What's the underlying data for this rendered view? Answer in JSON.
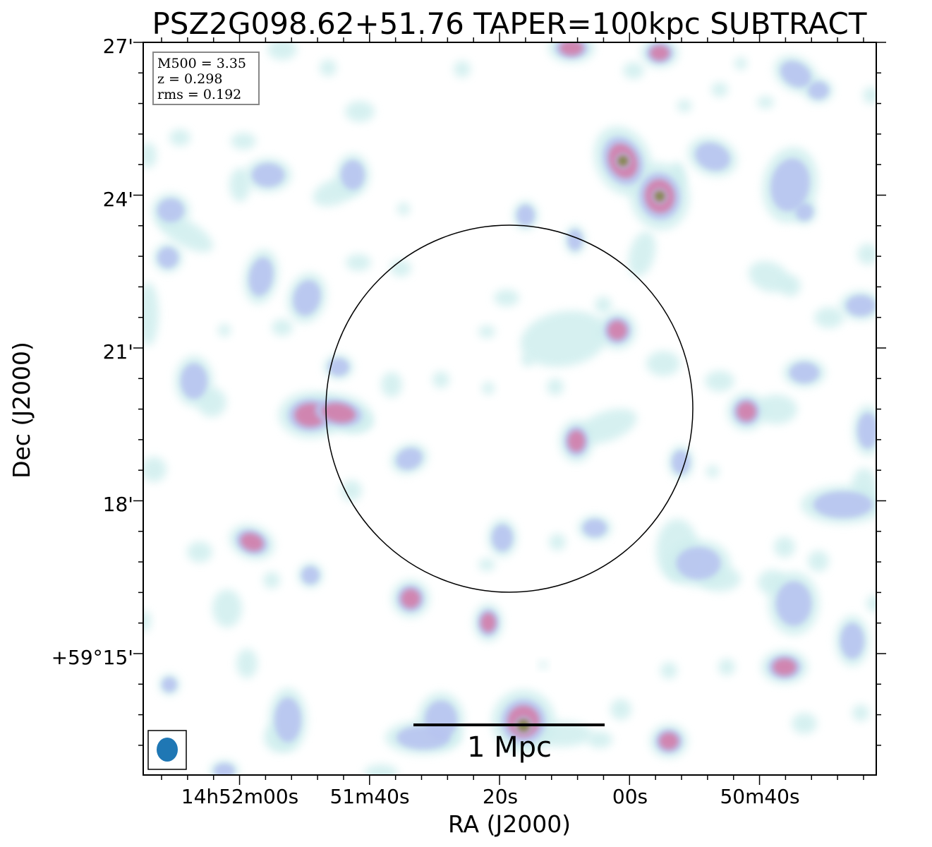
{
  "title": "PSZ2G098.62+51.76 TAPER=100kpc SUBTRACT",
  "info_box": {
    "lines": [
      "M500 = 3.35",
      "z = 0.298",
      "rms = 0.192"
    ]
  },
  "x_axis": {
    "label": "RA (J2000)",
    "ticks": [
      "14h52m00s",
      "51m40s",
      "20s",
      "00s",
      "50m40s"
    ]
  },
  "y_axis": {
    "label": "Dec (J2000)",
    "ticks": [
      "27'",
      "24'",
      "21'",
      "18'",
      "+59°15'"
    ]
  },
  "scale_bar": {
    "label": "1 Mpc"
  },
  "colors": {
    "beam": "#1f77b4",
    "low": "#cfeeee",
    "mid": "#b8c4f0",
    "high": "#d47aa6",
    "peak": "#6f8a3a"
  }
}
